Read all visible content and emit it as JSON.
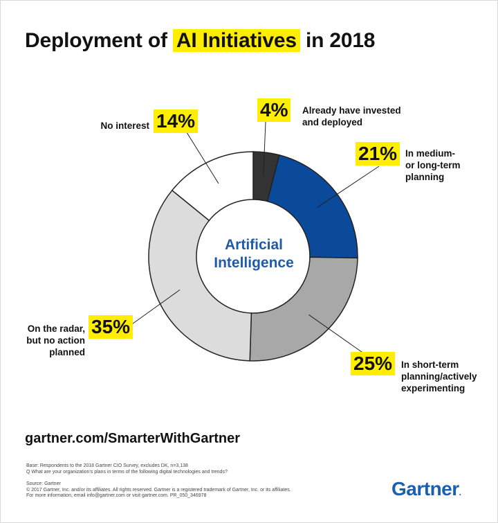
{
  "title": {
    "before": "Deployment of",
    "highlight": "AI Initiatives",
    "after": "in 2018"
  },
  "center_label": {
    "line1": "Artificial",
    "line2": "Intelligence"
  },
  "colors": {
    "highlight": "#ffee00",
    "accent_blue": "#1f5ba8",
    "slice_invested": "#333333",
    "slice_medium": "#0b4a9a",
    "slice_short": "#a8a8a8",
    "slice_radar": "#dcdcdc",
    "slice_none": "#ffffff"
  },
  "chart_data": {
    "type": "pie",
    "subtype": "donut",
    "title": "Deployment of AI Initiatives in 2018",
    "center_text": "Artificial Intelligence",
    "unit": "%",
    "slices": [
      {
        "key": "invested",
        "pct_label": "4%",
        "value": 4,
        "label_lines": [
          "Already have invested",
          "and deployed"
        ],
        "color": "#333333"
      },
      {
        "key": "medium",
        "pct_label": "21%",
        "value": 21,
        "label_lines": [
          "In medium-",
          "or long-term",
          "planning"
        ],
        "color": "#0b4a9a"
      },
      {
        "key": "short",
        "pct_label": "25%",
        "value": 25,
        "label_lines": [
          "In short-term",
          "planning/actively",
          "experimenting"
        ],
        "color": "#a8a8a8"
      },
      {
        "key": "radar",
        "pct_label": "35%",
        "value": 35,
        "label_lines": [
          "On the radar,",
          "but no action",
          "planned"
        ],
        "color": "#dcdcdc"
      },
      {
        "key": "none",
        "pct_label": "14%",
        "value": 14,
        "label_lines": [
          "No interest"
        ],
        "color": "#ffffff"
      }
    ]
  },
  "footer": {
    "url": "gartner.com/SmarterWithGartner",
    "base_line1": "Base: Respondents to the 2018 Gartner CIO Survey, excludes DK, n=3,138",
    "base_line2": "Q What are your organization's plans in terms of the following digital technologies and trends?",
    "source_line1": "Source: Gartner",
    "source_line2": "© 2017 Gartner, Inc. and/or its affiliates. All rights reserved. Gartner is a registered trademark of Gartner, Inc. or its affiliates.",
    "source_line3": "For more information, email info@gartner.com or visit gartner.com. PR_050_346978",
    "logo": "Gartner",
    "logo_mark": "."
  }
}
